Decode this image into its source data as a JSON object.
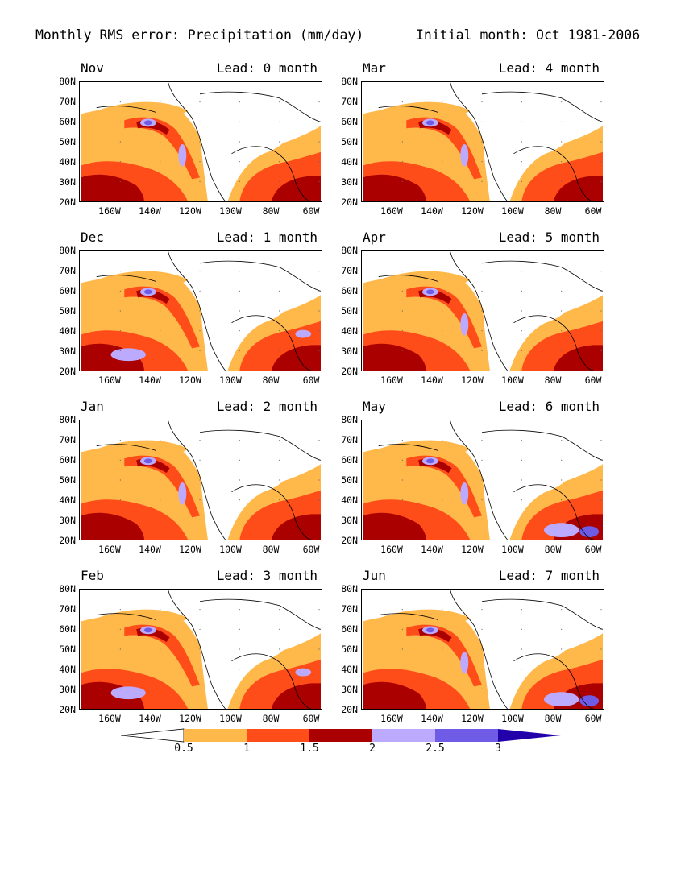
{
  "header": {
    "title_left": "Monthly RMS error: Precipitation (mm/day)",
    "title_right": "Initial month: Oct 1981-2006"
  },
  "map": {
    "latitude_labels": [
      "80N",
      "70N",
      "60N",
      "50N",
      "40N",
      "30N",
      "20N"
    ],
    "longitude_labels": [
      "160W",
      "140W",
      "120W",
      "100W",
      "80W",
      "60W"
    ],
    "extent": {
      "lon_min": -180,
      "lon_max": -55,
      "lat_min": 20,
      "lat_max": 80
    }
  },
  "panels": [
    {
      "month": "Nov",
      "lead": "Lead: 0 month"
    },
    {
      "month": "Mar",
      "lead": "Lead: 4 month"
    },
    {
      "month": "Dec",
      "lead": "Lead: 1 month"
    },
    {
      "month": "Apr",
      "lead": "Lead: 5 month"
    },
    {
      "month": "Jan",
      "lead": "Lead: 2 month"
    },
    {
      "month": "May",
      "lead": "Lead: 6 month"
    },
    {
      "month": "Feb",
      "lead": "Lead: 3 month"
    },
    {
      "month": "Jun",
      "lead": "Lead: 7 month"
    }
  ],
  "colorbar": {
    "labels": [
      "0.5",
      "1",
      "1.5",
      "2",
      "2.5",
      "3"
    ],
    "colors": [
      "#ffffff",
      "#ffb84a",
      "#ff4d1a",
      "#aa0000",
      "#bcaaff",
      "#6e5ce6",
      "#2200aa"
    ]
  }
}
